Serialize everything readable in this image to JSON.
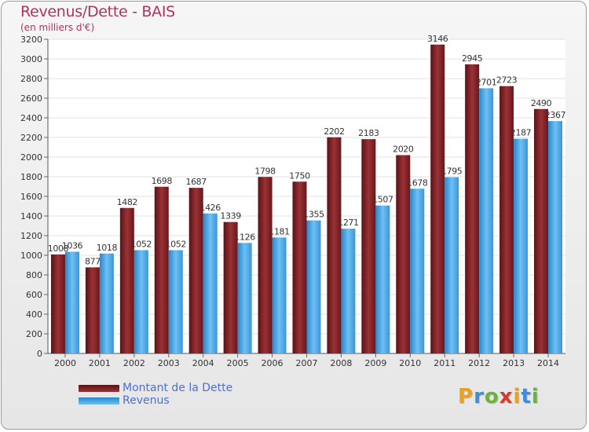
{
  "title": "Revenus/Dette - BAIS",
  "subtitle": "(en milliers d'€)",
  "logo": {
    "letters": [
      "P",
      "r",
      "o",
      "x",
      "i",
      "t",
      "i"
    ],
    "colors": [
      "#e8a21e",
      "#3a8fd8",
      "#6ab43c",
      "#d83a2a",
      "#e8a21e",
      "#3a8fd8",
      "#6ab43c"
    ]
  },
  "chart_data": {
    "type": "bar",
    "categories": [
      "2000",
      "2001",
      "2002",
      "2003",
      "2004",
      "2005",
      "2006",
      "2007",
      "2008",
      "2009",
      "2010",
      "2011",
      "2012",
      "2013",
      "2014"
    ],
    "series": [
      {
        "name": "Montant de la Dette",
        "color": "#7a1c22",
        "values": [
          1008,
          877,
          1482,
          1698,
          1687,
          1339,
          1798,
          1750,
          2202,
          2183,
          2020,
          3146,
          2945,
          2723,
          2490
        ]
      },
      {
        "name": "Revenus",
        "color": "#4aa6e8",
        "values": [
          1036,
          1018,
          1052,
          1052,
          1426,
          1126,
          1181,
          1355,
          1271,
          1507,
          1678,
          1795,
          2701,
          2187,
          2367
        ]
      }
    ],
    "ylim": [
      0,
      3200
    ],
    "yticks": [
      0,
      200,
      400,
      600,
      800,
      1000,
      1200,
      1400,
      1600,
      1800,
      2000,
      2200,
      2400,
      2600,
      2800,
      3000,
      3200
    ],
    "grid": true,
    "legend": "bottom-left"
  }
}
